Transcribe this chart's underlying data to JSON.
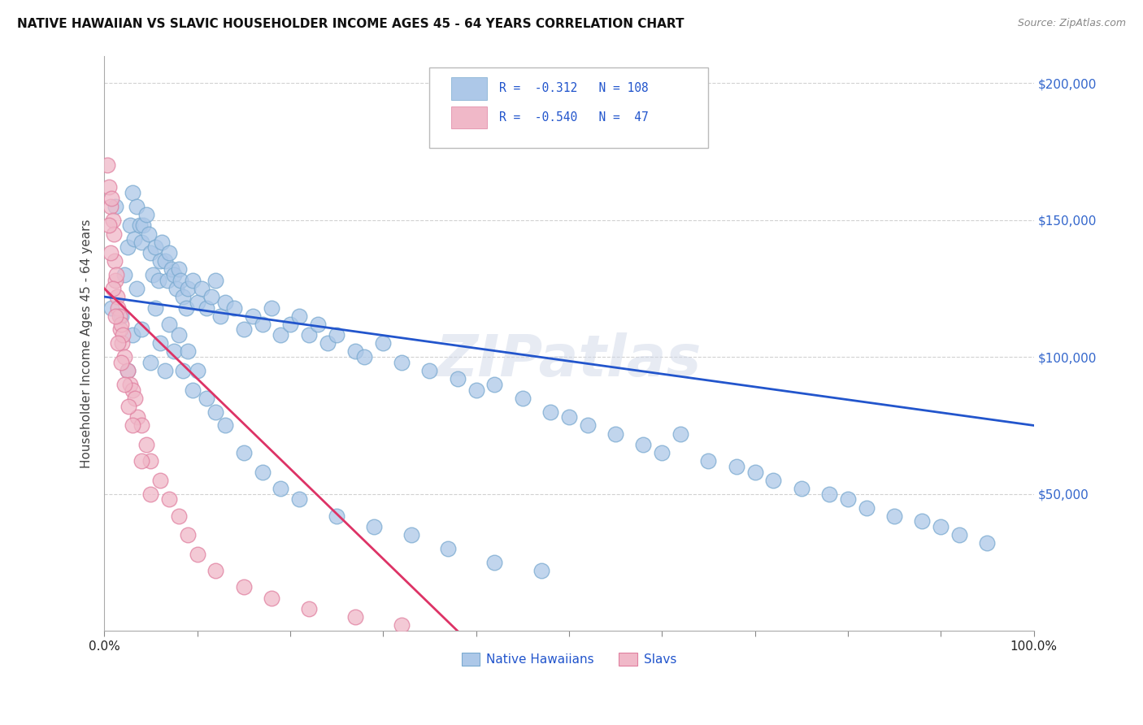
{
  "title": "NATIVE HAWAIIAN VS SLAVIC HOUSEHOLDER INCOME AGES 45 - 64 YEARS CORRELATION CHART",
  "source": "Source: ZipAtlas.com",
  "ylabel": "Householder Income Ages 45 - 64 years",
  "xlim": [
    0.0,
    1.0
  ],
  "ylim": [
    0,
    210000
  ],
  "ytick_values": [
    50000,
    100000,
    150000,
    200000
  ],
  "ytick_labels": [
    "$50,000",
    "$100,000",
    "$150,000",
    "$200,000"
  ],
  "background_color": "#ffffff",
  "grid_color": "#cccccc",
  "hawaiian_color": "#adc8e8",
  "hawaiian_edge": "#7aaad0",
  "slavic_color": "#f0b8c8",
  "slavic_edge": "#e080a0",
  "blue_line_color": "#2255cc",
  "pink_line_color": "#dd3366",
  "blue_line_x": [
    0.0,
    1.0
  ],
  "blue_line_y": [
    122000,
    75000
  ],
  "pink_line_x": [
    0.0,
    0.38
  ],
  "pink_line_y": [
    125000,
    0
  ],
  "hawaiian_x": [
    0.008,
    0.012,
    0.018,
    0.022,
    0.025,
    0.028,
    0.03,
    0.032,
    0.035,
    0.038,
    0.04,
    0.042,
    0.045,
    0.048,
    0.05,
    0.052,
    0.055,
    0.058,
    0.06,
    0.062,
    0.065,
    0.068,
    0.07,
    0.072,
    0.075,
    0.078,
    0.08,
    0.082,
    0.085,
    0.088,
    0.09,
    0.095,
    0.1,
    0.105,
    0.11,
    0.115,
    0.12,
    0.125,
    0.13,
    0.14,
    0.15,
    0.16,
    0.17,
    0.18,
    0.19,
    0.2,
    0.21,
    0.22,
    0.23,
    0.24,
    0.25,
    0.27,
    0.28,
    0.3,
    0.32,
    0.35,
    0.38,
    0.4,
    0.42,
    0.45,
    0.48,
    0.5,
    0.52,
    0.55,
    0.58,
    0.6,
    0.62,
    0.65,
    0.68,
    0.7,
    0.72,
    0.75,
    0.78,
    0.8,
    0.82,
    0.85,
    0.88,
    0.9,
    0.92,
    0.95,
    0.03,
    0.025,
    0.035,
    0.04,
    0.05,
    0.055,
    0.06,
    0.065,
    0.07,
    0.075,
    0.08,
    0.085,
    0.09,
    0.095,
    0.1,
    0.11,
    0.12,
    0.13,
    0.15,
    0.17,
    0.19,
    0.21,
    0.25,
    0.29,
    0.33,
    0.37,
    0.42,
    0.47
  ],
  "hawaiian_y": [
    118000,
    155000,
    115000,
    130000,
    140000,
    148000,
    160000,
    143000,
    155000,
    148000,
    142000,
    148000,
    152000,
    145000,
    138000,
    130000,
    140000,
    128000,
    135000,
    142000,
    135000,
    128000,
    138000,
    132000,
    130000,
    125000,
    132000,
    128000,
    122000,
    118000,
    125000,
    128000,
    120000,
    125000,
    118000,
    122000,
    128000,
    115000,
    120000,
    118000,
    110000,
    115000,
    112000,
    118000,
    108000,
    112000,
    115000,
    108000,
    112000,
    105000,
    108000,
    102000,
    100000,
    105000,
    98000,
    95000,
    92000,
    88000,
    90000,
    85000,
    80000,
    78000,
    75000,
    72000,
    68000,
    65000,
    72000,
    62000,
    60000,
    58000,
    55000,
    52000,
    50000,
    48000,
    45000,
    42000,
    40000,
    38000,
    35000,
    32000,
    108000,
    95000,
    125000,
    110000,
    98000,
    118000,
    105000,
    95000,
    112000,
    102000,
    108000,
    95000,
    102000,
    88000,
    95000,
    85000,
    80000,
    75000,
    65000,
    58000,
    52000,
    48000,
    42000,
    38000,
    35000,
    30000,
    25000,
    22000
  ],
  "slavic_x": [
    0.003,
    0.005,
    0.007,
    0.008,
    0.009,
    0.01,
    0.011,
    0.012,
    0.013,
    0.014,
    0.015,
    0.016,
    0.017,
    0.018,
    0.019,
    0.02,
    0.022,
    0.025,
    0.028,
    0.03,
    0.033,
    0.036,
    0.04,
    0.045,
    0.05,
    0.06,
    0.07,
    0.08,
    0.09,
    0.1,
    0.12,
    0.15,
    0.18,
    0.22,
    0.27,
    0.32,
    0.005,
    0.007,
    0.009,
    0.012,
    0.015,
    0.018,
    0.022,
    0.026,
    0.03,
    0.04,
    0.05
  ],
  "slavic_y": [
    170000,
    162000,
    155000,
    158000,
    150000,
    145000,
    135000,
    128000,
    130000,
    122000,
    118000,
    115000,
    110000,
    112000,
    105000,
    108000,
    100000,
    95000,
    90000,
    88000,
    85000,
    78000,
    75000,
    68000,
    62000,
    55000,
    48000,
    42000,
    35000,
    28000,
    22000,
    16000,
    12000,
    8000,
    5000,
    2000,
    148000,
    138000,
    125000,
    115000,
    105000,
    98000,
    90000,
    82000,
    75000,
    62000,
    50000
  ]
}
